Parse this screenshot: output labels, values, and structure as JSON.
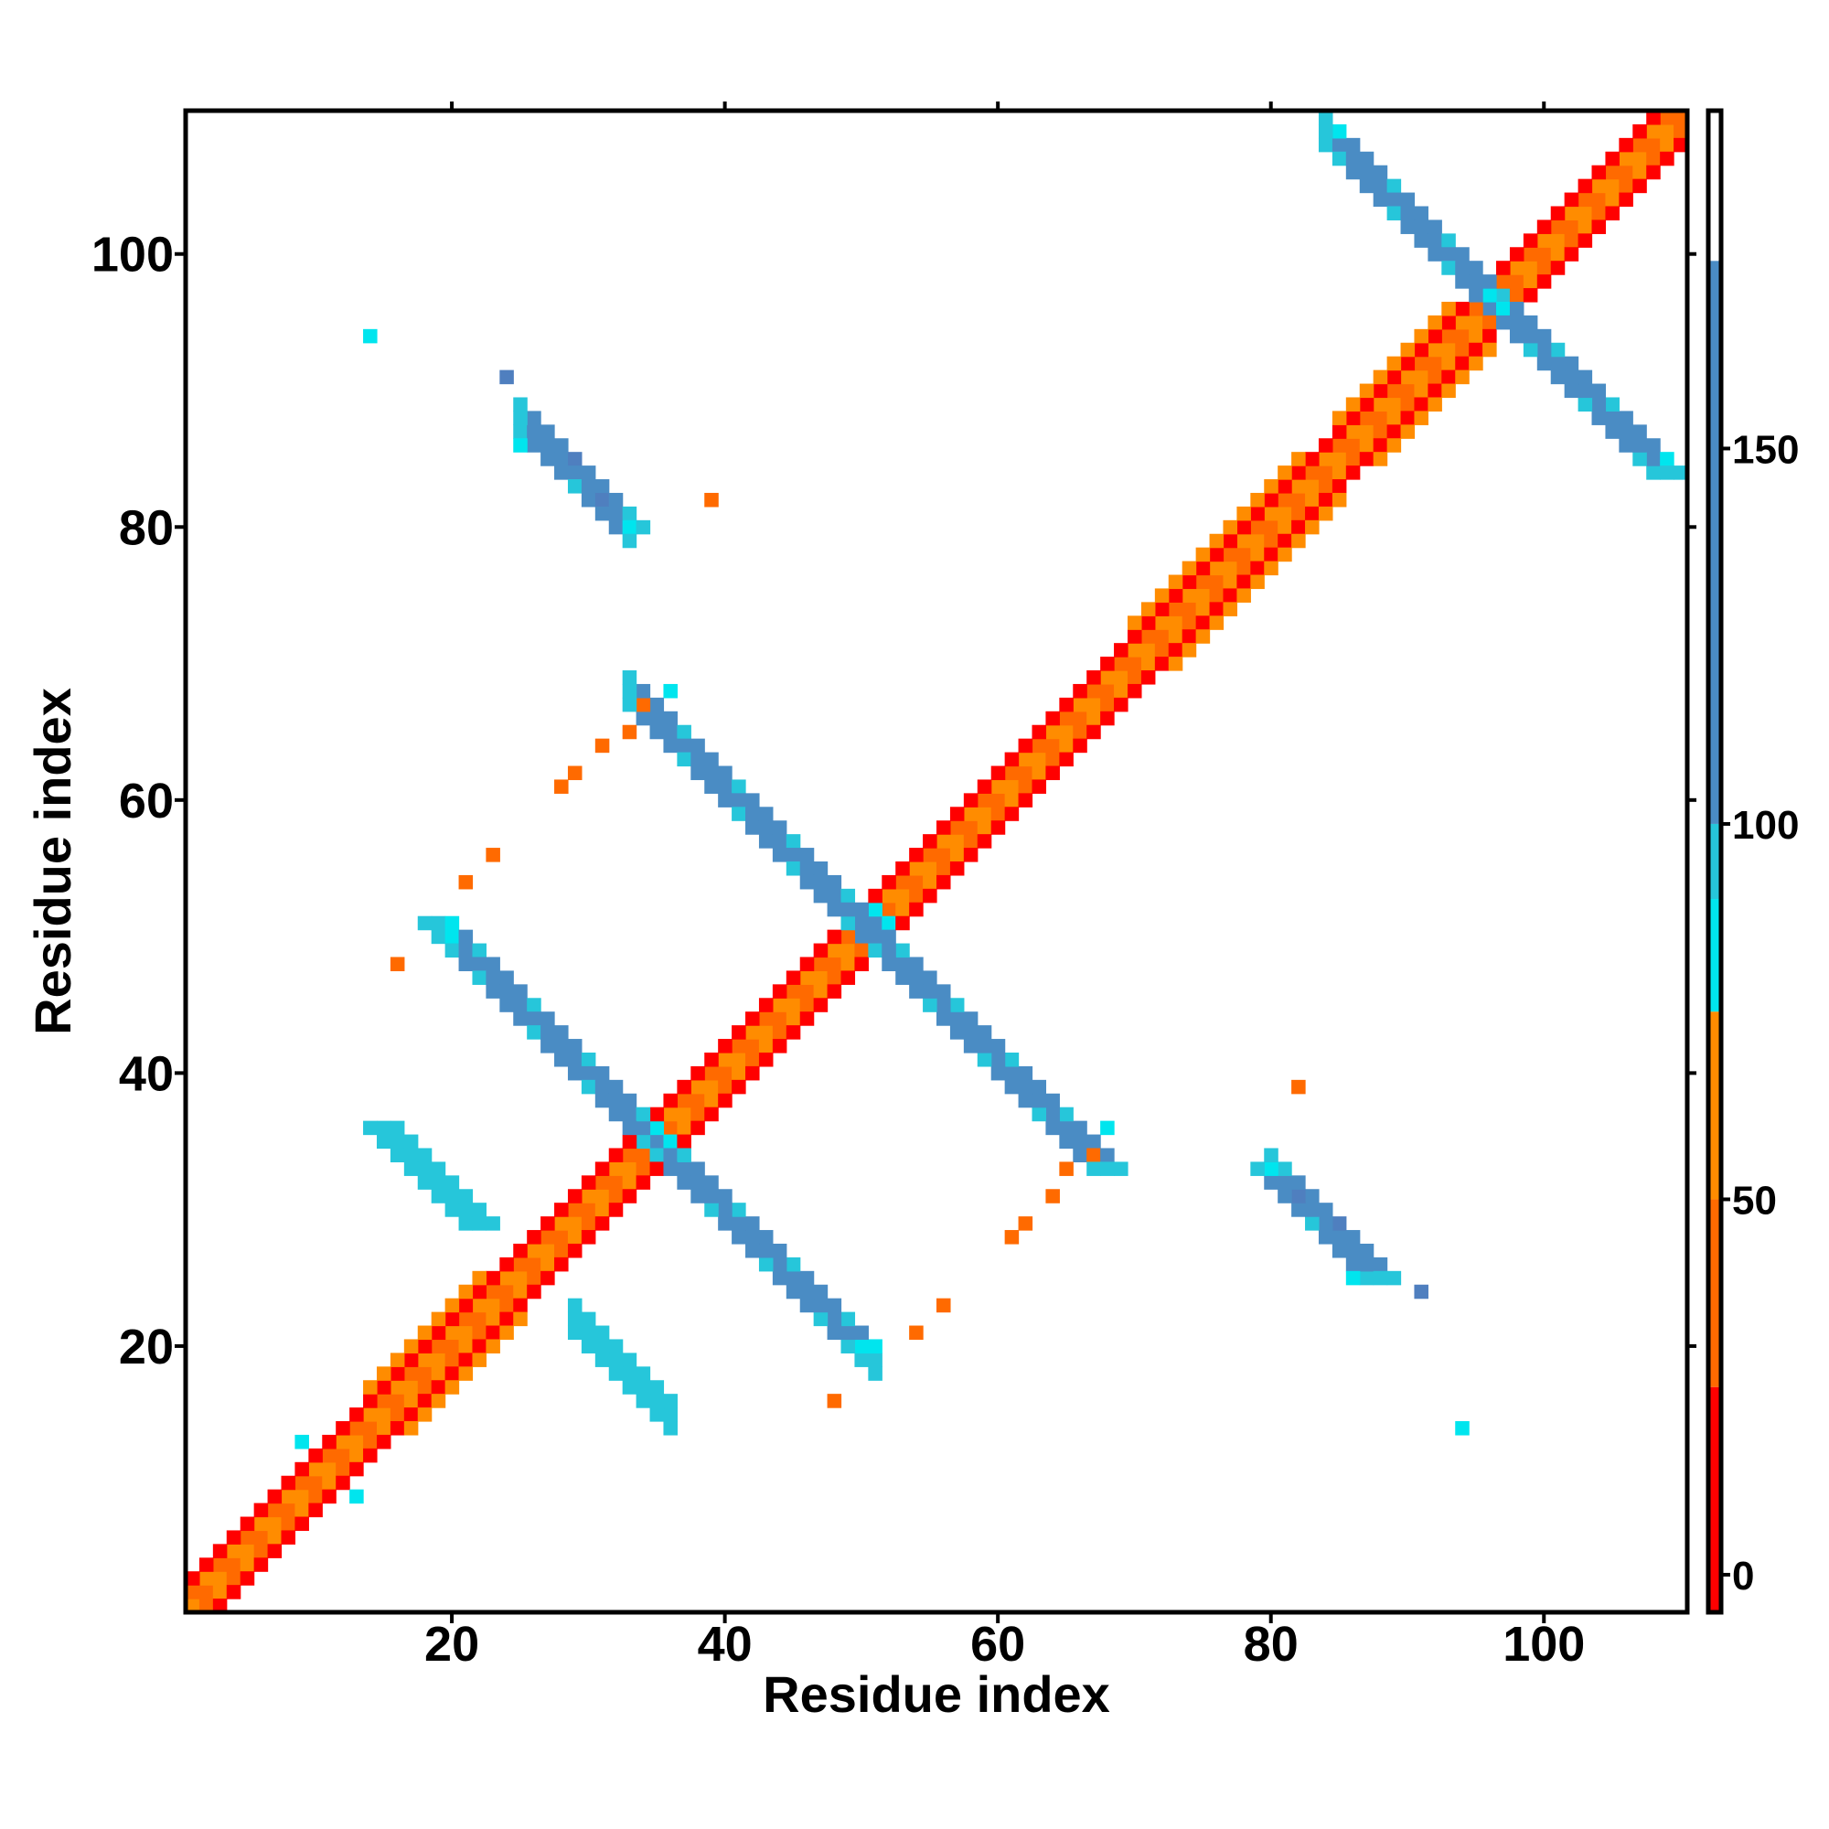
{
  "chart_data": {
    "type": "heatmap",
    "title": "",
    "xlabel": "Residue index",
    "ylabel": "Residue index",
    "xlim": [
      1,
      110
    ],
    "ylim": [
      1,
      110
    ],
    "x_ticks": [
      20,
      40,
      60,
      80,
      100
    ],
    "y_ticks": [
      20,
      40,
      60,
      80,
      100
    ],
    "colorbar": {
      "ticks": [
        0,
        50,
        100,
        150
      ],
      "range": [
        -5,
        195
      ],
      "bands": [
        {
          "from": -5,
          "to": 25,
          "color": "#ff0000"
        },
        {
          "from": 25,
          "to": 50,
          "color": "#ff6a00"
        },
        {
          "from": 50,
          "to": 75,
          "color": "#ff8c00"
        },
        {
          "from": 75,
          "to": 90,
          "color": "#00e5ee"
        },
        {
          "from": 90,
          "to": 100,
          "color": "#26c6da"
        },
        {
          "from": 100,
          "to": 175,
          "color": "#4a8cc4"
        },
        {
          "from": 175,
          "to": 195,
          "color": "#ffffff"
        }
      ]
    },
    "colors": {
      "red": "#ff0000",
      "dark_orange": "#ff6a00",
      "orange": "#ff8c00",
      "cyan": "#00e5ee",
      "light_blue": "#26c6da",
      "steel_blue": "#4a8cc4",
      "slate_blue": "#4f7fbf"
    },
    "regions": [
      {
        "kind": "diagonal",
        "offset": 0,
        "i_range": [
          1,
          110
        ],
        "pattern": [
          "dark_orange",
          "orange"
        ]
      },
      {
        "kind": "diagonal",
        "offset": 1,
        "i_range": [
          1,
          110
        ],
        "pattern": [
          "orange",
          "dark_orange"
        ]
      },
      {
        "kind": "diagonal",
        "offset": 2,
        "i_range": [
          1,
          110
        ],
        "pattern": [
          "red"
        ]
      },
      {
        "kind": "diagonal",
        "offset": 3,
        "i_range": [
          14,
          22
        ],
        "pattern": [
          "orange"
        ]
      },
      {
        "kind": "diagonal",
        "offset": 3,
        "i_range": [
          70,
          82
        ],
        "pattern": [
          "orange"
        ]
      },
      {
        "kind": "diagonal",
        "offset": 3,
        "i_range": [
          85,
          93
        ],
        "pattern": [
          "orange"
        ]
      },
      {
        "kind": "antidiagonal",
        "sum": 51,
        "i_range": [
          15,
          22
        ],
        "half_width": 1,
        "color": "light_blue"
      },
      {
        "kind": "antidiagonal",
        "sum": 70,
        "i_range": [
          19,
          50
        ],
        "half_width": 1,
        "color": "steel_blue"
      },
      {
        "kind": "antidiagonal",
        "sum": 101,
        "i_range": [
          35,
          68
        ],
        "half_width": 1,
        "color": "steel_blue"
      },
      {
        "kind": "antidiagonal",
        "sum": 113,
        "i_range": [
          26,
          33
        ],
        "half_width": 1,
        "color": "steel_blue"
      },
      {
        "kind": "antidiagonal",
        "sum": 113,
        "i_range": [
          80,
          88
        ],
        "half_width": 1,
        "color": "steel_blue"
      },
      {
        "kind": "antidiagonal",
        "sum": 193,
        "i_range": [
          85,
          109
        ],
        "half_width": 1,
        "color": "steel_blue"
      },
      {
        "kind": "points",
        "color": "cyan",
        "points": [
          [
            14,
            94
          ],
          [
            94,
            14
          ],
          [
            20,
            51
          ],
          [
            51,
            20
          ],
          [
            36,
            35
          ],
          [
            35,
            36
          ],
          [
            51,
            52
          ],
          [
            52,
            51
          ],
          [
            9,
            13
          ],
          [
            13,
            9
          ],
          [
            97,
            96
          ],
          [
            96,
            97
          ],
          [
            86,
            25
          ],
          [
            25,
            86
          ],
          [
            33,
            80
          ],
          [
            80,
            33
          ],
          [
            109,
            85
          ],
          [
            85,
            109
          ],
          [
            68,
            36
          ],
          [
            36,
            68
          ],
          [
            50,
            20
          ],
          [
            20,
            50
          ]
        ]
      },
      {
        "kind": "points",
        "color": "slate_blue",
        "points": [
          [
            24,
            91
          ],
          [
            91,
            24
          ],
          [
            29,
            85
          ],
          [
            85,
            29
          ],
          [
            31,
            82
          ],
          [
            82,
            31
          ]
        ]
      },
      {
        "kind": "points",
        "color": "dark_orange",
        "points": [
          [
            39,
            82
          ],
          [
            82,
            39
          ],
          [
            16,
            48
          ],
          [
            48,
            16
          ],
          [
            21,
            54
          ],
          [
            54,
            21
          ],
          [
            23,
            56
          ],
          [
            56,
            23
          ],
          [
            29,
            62
          ],
          [
            62,
            29
          ],
          [
            31,
            64
          ],
          [
            64,
            31
          ],
          [
            33,
            65
          ],
          [
            65,
            33
          ],
          [
            34,
            67
          ],
          [
            67,
            34
          ],
          [
            28,
            61
          ],
          [
            61,
            28
          ]
        ]
      }
    ]
  }
}
